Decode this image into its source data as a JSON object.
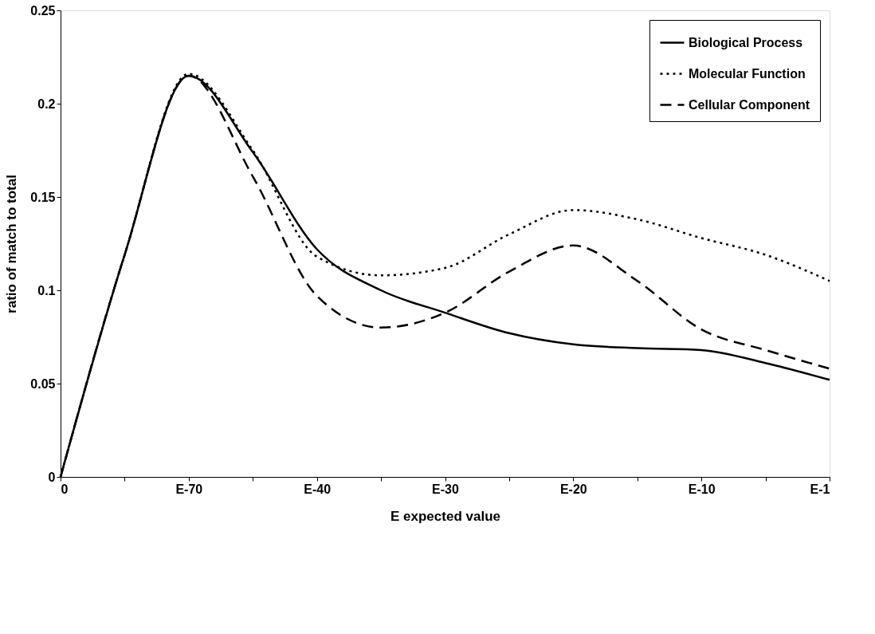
{
  "chart_data": {
    "type": "line",
    "xlabel": "E expected value",
    "ylabel": "ratio of match to total",
    "categories": [
      "0",
      null,
      "E-70",
      null,
      "E-40",
      null,
      "E-30",
      null,
      "E-20",
      null,
      "E-10",
      null,
      "E-1"
    ],
    "ylim": [
      0,
      0.25
    ],
    "yticks": [
      0,
      0.05,
      0.1,
      0.15,
      0.2,
      0.25
    ],
    "grid": false,
    "legend": "top right",
    "marker": "none",
    "series": [
      {
        "name": "Biological Process",
        "color": "#000000",
        "line_style": "solid",
        "values": [
          0,
          0.119,
          0.215,
          0.174,
          0.122,
          0.1,
          0.088,
          0.077,
          0.071,
          0.069,
          0.068,
          0.061,
          0.052
        ]
      },
      {
        "name": "Molecular Function",
        "color": "#000000",
        "line_style": "dotted",
        "values": [
          0,
          0.119,
          0.216,
          0.175,
          0.118,
          0.108,
          0.112,
          0.13,
          0.143,
          0.138,
          0.128,
          0.119,
          0.105
        ]
      },
      {
        "name": "Cellular Component",
        "color": "#000000",
        "line_style": "dashed",
        "values": [
          0,
          0.119,
          0.215,
          0.161,
          0.097,
          0.08,
          0.088,
          0.11,
          0.124,
          0.105,
          0.079,
          0.068,
          0.058
        ]
      }
    ]
  }
}
